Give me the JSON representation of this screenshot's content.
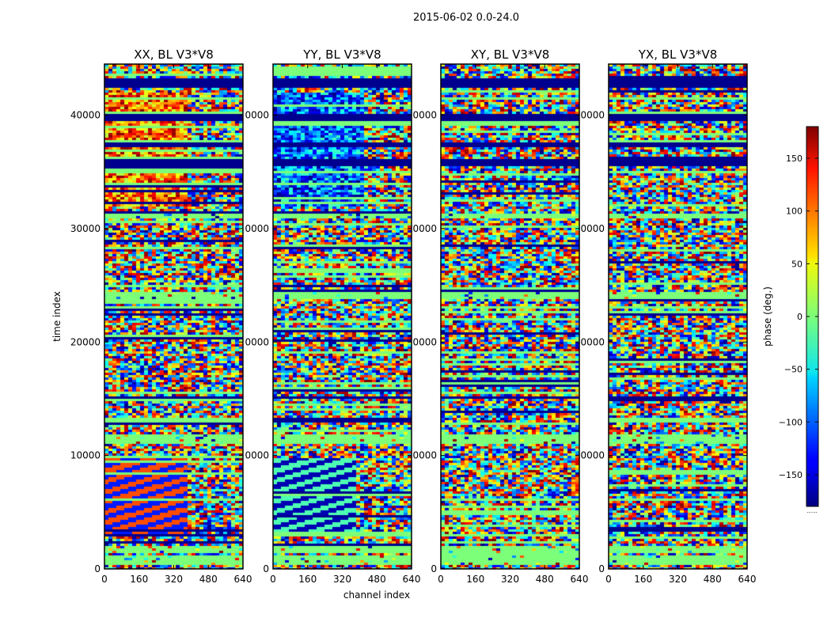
{
  "figure": {
    "suptitle": "2015-06-02 0.0-24.0",
    "ylabel": "time index",
    "xlabel": "channel index"
  },
  "chart_data": {
    "type": "heatmap",
    "colormap": "jet",
    "x_range": [
      0,
      640
    ],
    "y_range": [
      0,
      44500
    ],
    "x_ticks": [
      0,
      160,
      320,
      480,
      640
    ],
    "y_ticks": [
      0,
      10000,
      20000,
      30000,
      40000
    ],
    "x_tick_labels": [
      "0",
      "160",
      "320",
      "480",
      "640"
    ],
    "y_tick_labels": [
      "0",
      "10000",
      "20000",
      "30000",
      "40000"
    ],
    "y_tick_labels_clipped": [
      "0",
      "0000",
      "0000",
      "0000",
      "0000"
    ],
    "panels": [
      {
        "title": "XX, BL V3*V8",
        "pol": "XX"
      },
      {
        "title": "YY, BL V3*V8",
        "pol": "YY"
      },
      {
        "title": "XY, BL V3*V8",
        "pol": "XY"
      },
      {
        "title": "YX, BL V3*V8",
        "pol": "YX"
      }
    ],
    "colorbar": {
      "label": "phase (deg.)",
      "range": [
        -180,
        180
      ],
      "ticks": [
        -150,
        -100,
        -50,
        0,
        50,
        100,
        150
      ],
      "tick_labels": [
        "−150",
        "−100",
        "−50",
        "0",
        "50",
        "100",
        "150"
      ],
      "footer_text": "......"
    }
  },
  "colors": {
    "axis": "#000000",
    "background": "#ffffff",
    "flagged_band": "#00008f",
    "zero_phase_band": "#7cff79",
    "jet_low": "#00007f",
    "jet_high": "#7f0000"
  }
}
